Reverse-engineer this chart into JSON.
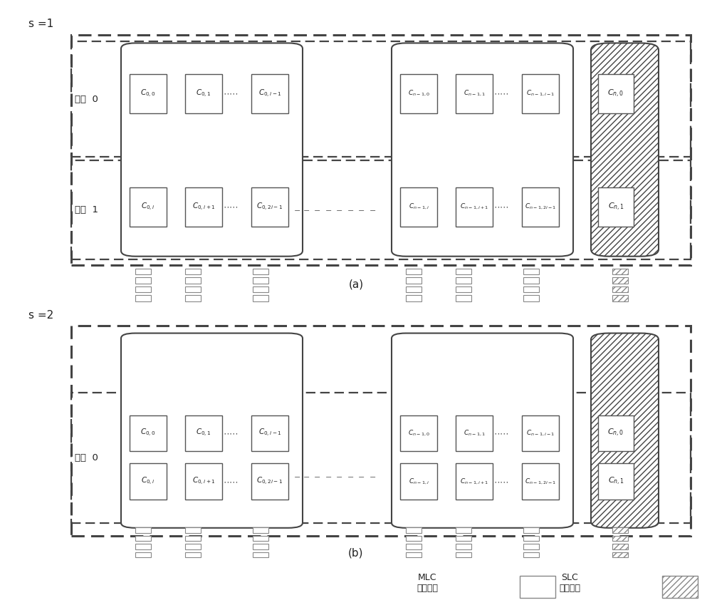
{
  "bg_color": "#ffffff",
  "line_color": "#444444",
  "text_color": "#222222",
  "caption_a": "(a)",
  "caption_b": "(b)",
  "legend_mlc_label": "MLC\n闪存芯片",
  "legend_slc_label": "SLC\n闪存芯片"
}
